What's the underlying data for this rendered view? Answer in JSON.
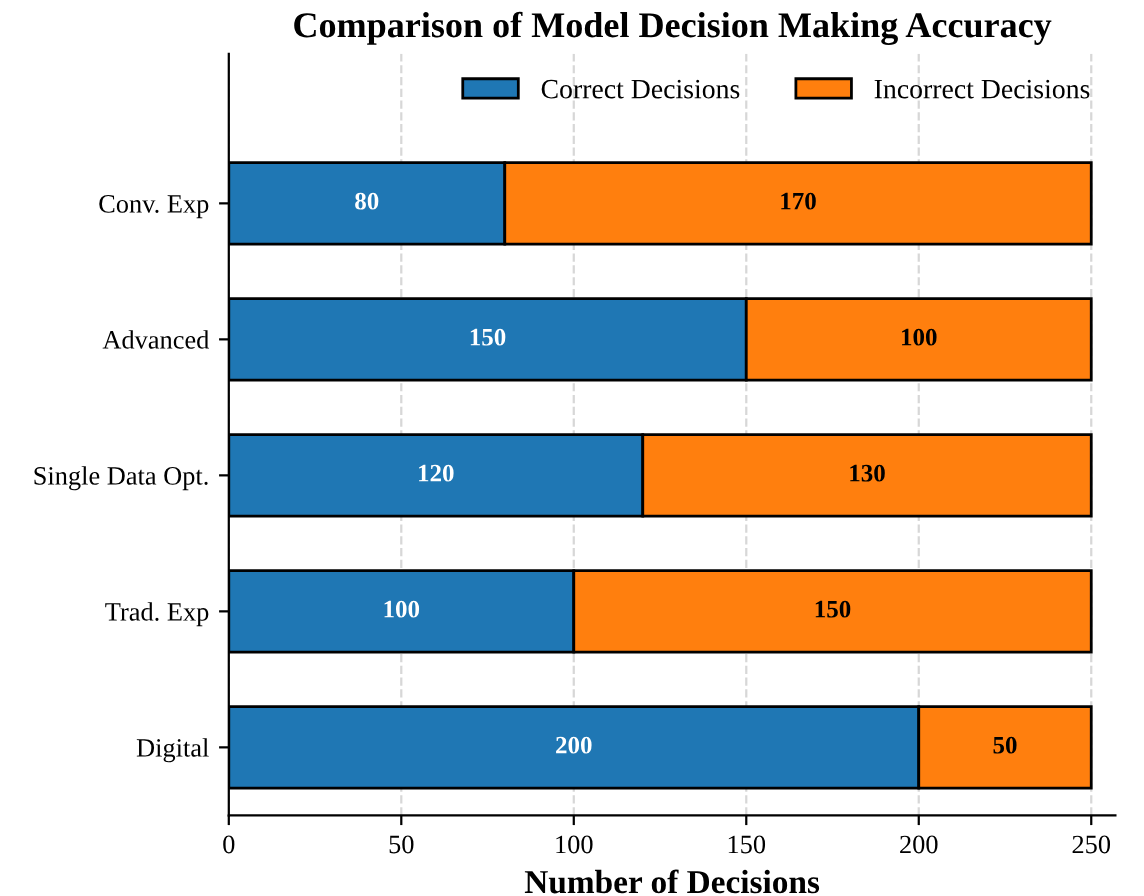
{
  "chart_data": {
    "type": "bar",
    "orientation": "horizontal",
    "stacked": true,
    "title": "Comparison of Model Decision Making Accuracy",
    "xlabel": "Number of Decisions",
    "categories": [
      "Conv. Exp",
      "Advanced",
      "Single Data Opt.",
      "Trad. Exp",
      "Digital"
    ],
    "series": [
      {
        "name": "Correct Decisions",
        "color": "#1f77b4",
        "values": [
          80,
          150,
          120,
          100,
          200
        ]
      },
      {
        "name": "Incorrect Decisions",
        "color": "#ff7f0e",
        "values": [
          170,
          100,
          130,
          150,
          50
        ]
      }
    ],
    "xlim": [
      0,
      257
    ],
    "xticks": [
      0,
      50,
      100,
      150,
      200,
      250
    ],
    "grid": "x",
    "legend": "top right",
    "data_labels": true
  }
}
